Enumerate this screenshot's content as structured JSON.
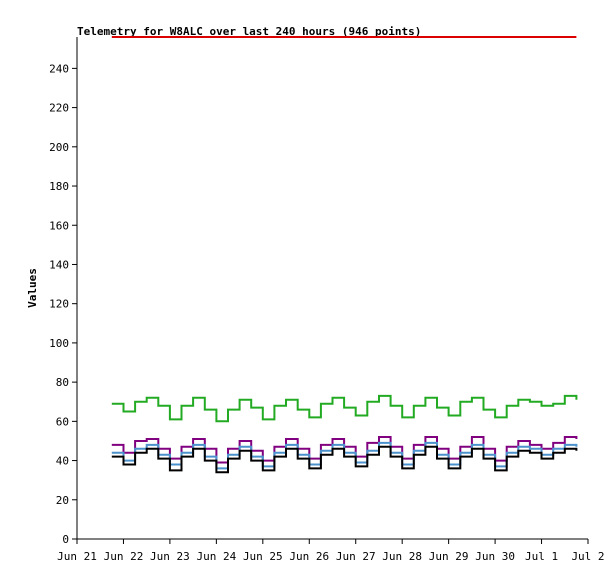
{
  "chart_data": {
    "type": "line",
    "title": "Telemetry for W8ALC over last 240 hours (946 points)",
    "xlabel": "",
    "ylabel": "Values",
    "xlim": [
      0,
      11
    ],
    "ylim": [
      0,
      256
    ],
    "x_tick_labels": [
      "Jun 21",
      "Jun 22",
      "Jun 23",
      "Jun 24",
      "Jun 25",
      "Jun 26",
      "Jun 27",
      "Jun 28",
      "Jun 29",
      "Jun 30",
      "Jul 1",
      "Jul 2"
    ],
    "y_ticks": [
      0,
      20,
      40,
      60,
      80,
      100,
      120,
      140,
      160,
      180,
      200,
      220,
      240
    ],
    "grid": false,
    "x": [
      0.75,
      1.0,
      1.25,
      1.5,
      1.75,
      2.0,
      2.25,
      2.5,
      2.75,
      3.0,
      3.25,
      3.5,
      3.75,
      4.0,
      4.25,
      4.5,
      4.75,
      5.0,
      5.25,
      5.5,
      5.75,
      6.0,
      6.25,
      6.5,
      6.75,
      7.0,
      7.25,
      7.5,
      7.75,
      8.0,
      8.25,
      8.5,
      8.75,
      9.0,
      9.25,
      9.5,
      9.75,
      10.0,
      10.25,
      10.5,
      10.75
    ],
    "series": [
      {
        "color": "#dd0000",
        "values": [
          256,
          256,
          256,
          256,
          256,
          256,
          256,
          256,
          256,
          256,
          256,
          256,
          256,
          256,
          256,
          256,
          256,
          256,
          256,
          256,
          256,
          256,
          256,
          256,
          256,
          256,
          256,
          256,
          256,
          256,
          256,
          256,
          256,
          256,
          256,
          256,
          256,
          256,
          256,
          256,
          256
        ]
      },
      {
        "color": "#22aa22",
        "values": [
          69,
          65,
          70,
          72,
          68,
          61,
          68,
          72,
          66,
          60,
          66,
          71,
          67,
          61,
          68,
          71,
          66,
          62,
          69,
          72,
          67,
          63,
          70,
          73,
          68,
          62,
          68,
          72,
          67,
          63,
          70,
          72,
          66,
          62,
          68,
          71,
          70,
          68,
          69,
          73,
          71
        ]
      },
      {
        "color": "#800080",
        "values": [
          48,
          44,
          50,
          51,
          46,
          41,
          47,
          51,
          46,
          39,
          46,
          50,
          45,
          40,
          47,
          51,
          46,
          41,
          48,
          51,
          47,
          42,
          49,
          52,
          47,
          41,
          48,
          52,
          46,
          41,
          47,
          52,
          46,
          40,
          47,
          50,
          48,
          46,
          49,
          52,
          51
        ]
      },
      {
        "color": "#4b92cc",
        "values": [
          44,
          40,
          46,
          48,
          43,
          38,
          44,
          48,
          42,
          36,
          43,
          47,
          42,
          37,
          44,
          48,
          43,
          38,
          45,
          48,
          44,
          39,
          45,
          49,
          44,
          38,
          45,
          49,
          43,
          38,
          44,
          48,
          43,
          37,
          44,
          47,
          46,
          43,
          46,
          48,
          47
        ]
      },
      {
        "color": "#000000",
        "values": [
          42,
          38,
          44,
          46,
          41,
          35,
          42,
          46,
          40,
          34,
          41,
          45,
          40,
          35,
          42,
          46,
          41,
          36,
          43,
          46,
          42,
          37,
          43,
          47,
          42,
          36,
          43,
          47,
          41,
          36,
          42,
          46,
          41,
          35,
          42,
          45,
          44,
          41,
          44,
          46,
          45
        ]
      }
    ]
  }
}
